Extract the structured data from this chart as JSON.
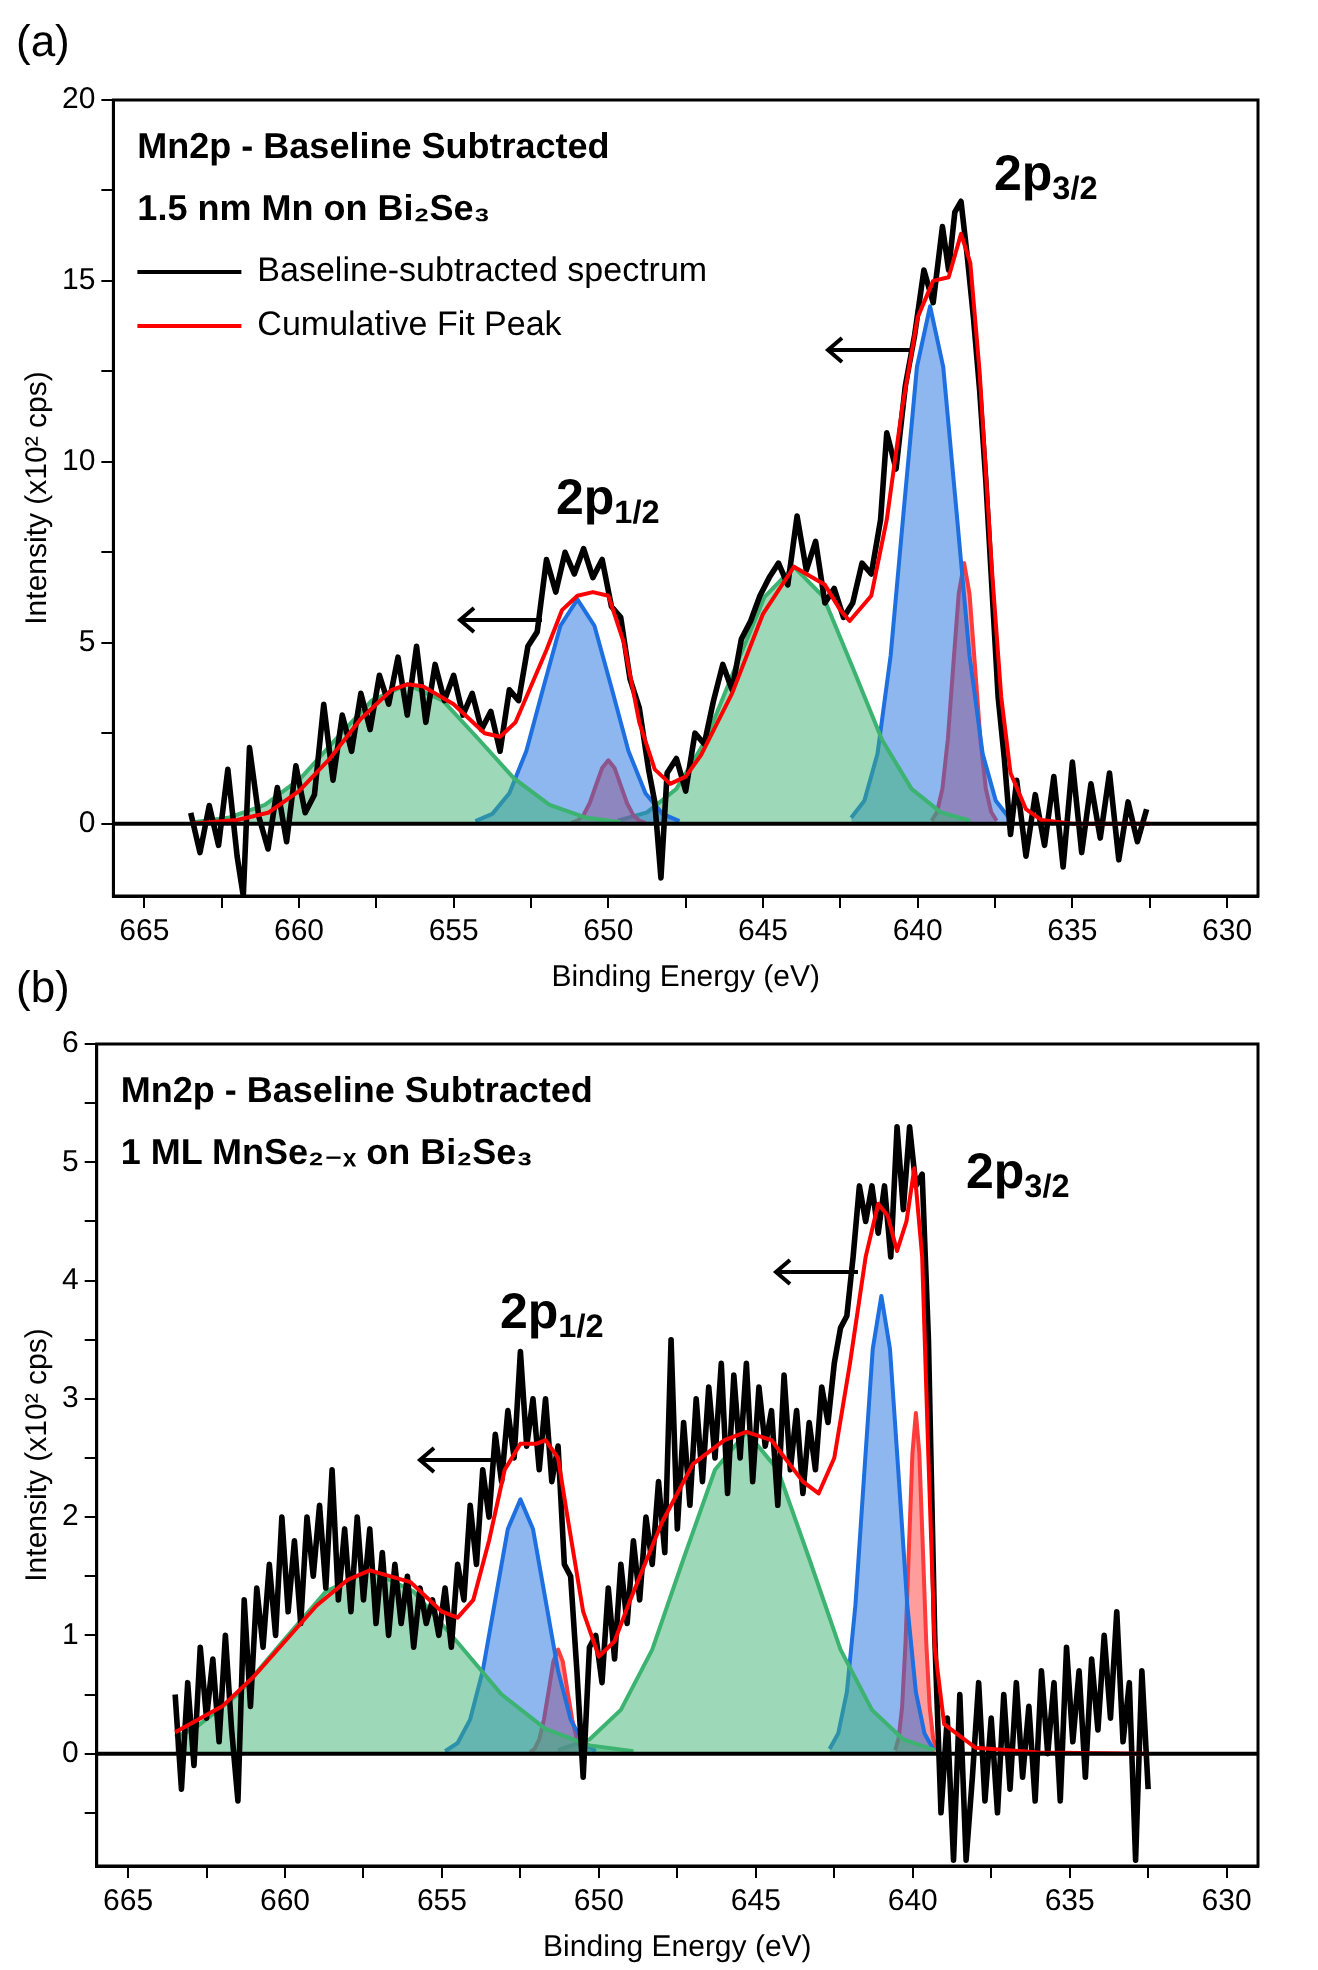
{
  "chart_data": [
    {
      "type": "line",
      "title": "Mn2p - Baseline Subtracted",
      "subtitle": "1.5 nm Mn on Bi₂Se₃",
      "xlabel": "Binding Energy (eV)",
      "ylabel": "Intensity (x10² cps)",
      "xlim": [
        666,
        629
      ],
      "xticks": [
        665,
        {
          "value": 662.5,
          "label": null
        },
        660,
        {
          "value": 657.5,
          "label": null
        },
        655,
        {
          "value": 652.5,
          "label": null
        },
        650,
        {
          "value": 647.5,
          "label": null
        },
        645,
        {
          "value": 642.5,
          "label": null
        },
        640,
        {
          "value": 637.5,
          "label": null
        },
        635,
        {
          "value": 632.5,
          "label": null
        },
        630
      ],
      "ylim": [
        -2,
        20
      ],
      "yticks": [
        0,
        {
          "value": 2.5,
          "label": null
        },
        5,
        {
          "value": 7.5,
          "label": null
        },
        10,
        {
          "value": 12.5,
          "label": null
        },
        15,
        {
          "value": 17.5,
          "label": null
        },
        20
      ],
      "legend": "top left",
      "grid": false,
      "ref_lines": [
        {
          "axis": "y",
          "value": 0,
          "color": "#000000"
        }
      ],
      "annotations": [
        "(a)",
        "2p$_{3/2}$",
        "2p$_{1/2}$"
      ],
      "series": [
        {
          "type": "line",
          "name": "Baseline-subtracted spectrum",
          "color": "#000000",
          "x": [
            663.5,
            663.2,
            662.9,
            662.6,
            662.3,
            662.0,
            661.8,
            661.6,
            661.3,
            661.0,
            660.7,
            660.4,
            660.1,
            659.8,
            659.5,
            659.2,
            658.9,
            658.6,
            658.3,
            658.0,
            657.7,
            657.4,
            657.1,
            656.8,
            656.5,
            656.2,
            655.9,
            655.6,
            655.3,
            655.0,
            654.7,
            654.4,
            654.1,
            653.8,
            653.5,
            653.2,
            652.9,
            652.6,
            652.3,
            652.0,
            651.7,
            651.4,
            651.1,
            650.8,
            650.5,
            650.2,
            649.9,
            649.6,
            649.3,
            649.0,
            648.7,
            648.5,
            648.3,
            648.1,
            647.8,
            647.5,
            647.2,
            646.9,
            646.6,
            646.3,
            646.0,
            645.7,
            645.4,
            645.1,
            644.8,
            644.5,
            644.2,
            643.9,
            643.6,
            643.3,
            643.0,
            642.7,
            642.4,
            642.1,
            641.8,
            641.5,
            641.2,
            641.0,
            640.7,
            640.4,
            640.1,
            639.8,
            639.5,
            639.2,
            639.0,
            638.8,
            638.6,
            638.4,
            638.2,
            638.0,
            637.8,
            637.6,
            637.4,
            637.2,
            637.0,
            636.8,
            636.5,
            636.2,
            635.9,
            635.6,
            635.3,
            635.0,
            634.7,
            634.4,
            634.1,
            633.8,
            633.5,
            633.2,
            632.9,
            632.6
          ],
          "values": [
            0.3,
            -0.8,
            0.5,
            -0.6,
            1.5,
            -0.9,
            -2.0,
            2.1,
            0.2,
            -0.7,
            1.0,
            -0.5,
            1.6,
            0.3,
            0.8,
            3.3,
            1.2,
            3.0,
            2.0,
            3.6,
            2.6,
            4.1,
            3.3,
            4.6,
            3.0,
            4.9,
            2.8,
            4.4,
            3.4,
            4.1,
            3.0,
            3.6,
            2.6,
            3.1,
            2.0,
            3.7,
            3.4,
            4.9,
            5.3,
            7.3,
            6.4,
            7.5,
            6.9,
            7.6,
            6.8,
            7.3,
            6.0,
            5.7,
            4.0,
            3.2,
            1.5,
            0.6,
            -1.5,
            1.4,
            1.8,
            0.9,
            2.5,
            2.2,
            3.4,
            4.4,
            3.7,
            5.1,
            5.6,
            6.3,
            6.8,
            7.2,
            6.6,
            8.5,
            7.0,
            7.8,
            6.1,
            6.5,
            5.7,
            6.1,
            7.2,
            6.9,
            8.4,
            10.8,
            9.8,
            12.1,
            13.5,
            15.3,
            14.4,
            16.5,
            15.3,
            16.9,
            17.2,
            15.7,
            14.0,
            12.0,
            9.5,
            6.5,
            3.5,
            1.8,
            -0.3,
            1.2,
            -0.9,
            0.8,
            -0.6,
            1.3,
            -1.2,
            1.7,
            -0.8,
            1.1,
            -0.4,
            1.4,
            -1.0,
            0.6,
            -0.5,
            0.4
          ]
        },
        {
          "type": "line",
          "name": "Cumulative Fit Peak",
          "color": "#ff0000",
          "x": [
            663.5,
            662,
            661,
            660,
            659,
            658,
            657,
            656.5,
            656,
            655,
            654,
            653.5,
            653,
            652,
            651.5,
            651,
            650.5,
            650,
            649.5,
            649,
            648.5,
            648,
            647.5,
            647,
            646,
            645,
            644,
            643,
            642.5,
            642.2,
            641.5,
            641,
            640.5,
            640,
            639.5,
            639,
            638.6,
            638.3,
            638,
            637.6,
            637.3,
            637,
            636.5,
            636,
            635,
            632.5
          ],
          "values": [
            0.0,
            0.1,
            0.3,
            0.9,
            1.8,
            2.9,
            3.7,
            3.85,
            3.8,
            3.3,
            2.5,
            2.4,
            2.8,
            4.8,
            5.9,
            6.3,
            6.4,
            6.3,
            5.0,
            2.8,
            1.5,
            1.1,
            1.3,
            1.9,
            3.6,
            5.8,
            7.1,
            6.6,
            5.9,
            5.6,
            6.3,
            8.4,
            11.5,
            14.0,
            15.0,
            15.1,
            16.3,
            15.5,
            12.5,
            7.0,
            3.5,
            1.4,
            0.4,
            0.1,
            0.0,
            0.0
          ]
        },
        {
          "type": "area",
          "color": "#3cb371",
          "x": [
            649.6,
            650.75,
            651.9,
            653.05,
            654.2,
            655.35,
            656.5,
            657.65,
            658.8,
            659.95,
            661.1,
            662.25,
            663.4
          ],
          "values": [
            0.04,
            0.17,
            0.52,
            1.25,
            2.34,
            3.4,
            3.85,
            3.4,
            2.34,
            1.25,
            0.52,
            0.17,
            0.04
          ]
        },
        {
          "type": "area",
          "color": "#1e6fe0",
          "x": [
            647.7,
            648.25,
            648.8,
            649.35,
            649.9,
            650.45,
            651,
            651.55,
            652.1,
            652.65,
            653.2,
            653.75,
            654.3
          ],
          "values": [
            0.07,
            0.27,
            0.84,
            2.01,
            3.76,
            5.47,
            6.2,
            5.47,
            3.76,
            2.01,
            0.84,
            0.27,
            0.07
          ]
        },
        {
          "type": "area",
          "color": "#ff3b3b",
          "x": [
            648.8,
            649.0,
            649.2,
            649.4,
            649.6,
            649.8,
            650,
            650.2,
            650.4,
            650.6,
            650.8,
            651.0,
            651.2
          ],
          "values": [
            0.02,
            0.08,
            0.24,
            0.57,
            1.06,
            1.54,
            1.75,
            1.54,
            1.06,
            0.57,
            0.24,
            0.08,
            0.02
          ]
        },
        {
          "type": "area",
          "color": "#3cb371",
          "x": [
            638.3,
            639.25,
            640.2,
            641.15,
            642.1,
            643.05,
            644,
            644.95,
            645.9,
            646.85,
            647.8,
            648.75,
            649.7
          ],
          "values": [
            0.08,
            0.31,
            0.96,
            2.31,
            4.31,
            6.27,
            7.1,
            6.27,
            4.31,
            2.31,
            0.96,
            0.31,
            0.08
          ]
        },
        {
          "type": "area",
          "color": "#1e6fe0",
          "x": [
            637.05,
            637.475,
            637.9,
            638.325,
            638.75,
            639.175,
            639.6,
            640.025,
            640.45,
            640.875,
            641.3,
            641.725,
            642.15
          ],
          "values": [
            0.16,
            0.63,
            1.93,
            4.64,
            8.67,
            12.62,
            14.3,
            12.62,
            8.67,
            4.64,
            1.93,
            0.63,
            0.16
          ]
        },
        {
          "type": "area",
          "color": "#ff3b3b",
          "x": [
            637.45,
            637.625,
            637.8,
            637.975,
            638.15,
            638.325,
            638.5,
            638.675,
            638.85,
            639.025,
            639.2,
            639.375,
            639.55
          ],
          "values": [
            0.08,
            0.32,
            0.97,
            2.34,
            4.37,
            6.35,
            7.2,
            6.35,
            4.37,
            2.34,
            0.97,
            0.32,
            0.08
          ]
        }
      ]
    },
    {
      "type": "line",
      "title": "Mn2p - Baseline Subtracted",
      "subtitle": "1 ML MnSe₂₋ₓ on Bi₂Se₃",
      "xlabel": "Binding Energy (eV)",
      "ylabel": "Intensity (x10² cps)",
      "xlim": [
        666,
        629
      ],
      "xticks": [
        665,
        {
          "value": 662.5,
          "label": null
        },
        660,
        {
          "value": 657.5,
          "label": null
        },
        655,
        {
          "value": 652.5,
          "label": null
        },
        650,
        {
          "value": 647.5,
          "label": null
        },
        645,
        {
          "value": 642.5,
          "label": null
        },
        640,
        {
          "value": 637.5,
          "label": null
        },
        635,
        {
          "value": 632.5,
          "label": null
        },
        630
      ],
      "ylim": [
        -0.95,
        6
      ],
      "yticks": [
        {
          "value": -0.5,
          "label": null
        },
        0,
        {
          "value": 0.5,
          "label": null
        },
        1,
        {
          "value": 1.5,
          "label": null
        },
        2,
        {
          "value": 2.5,
          "label": null
        },
        3,
        {
          "value": 3.5,
          "label": null
        },
        4,
        {
          "value": 4.5,
          "label": null
        },
        5,
        {
          "value": 5.5,
          "label": null
        },
        6
      ],
      "grid": false,
      "ref_lines": [
        {
          "axis": "y",
          "value": 0,
          "color": "#000000"
        }
      ],
      "annotations": [
        "(b)",
        "2p$_{3/2}$",
        "2p$_{1/2}$"
      ],
      "series": [
        {
          "type": "line",
          "color": "#000000",
          "x": [
            663.5,
            663.3,
            663.1,
            662.9,
            662.7,
            662.5,
            662.3,
            662.1,
            661.9,
            661.7,
            661.5,
            661.3,
            661.1,
            660.9,
            660.7,
            660.5,
            660.3,
            660.1,
            659.9,
            659.7,
            659.5,
            659.3,
            659.1,
            658.9,
            658.7,
            658.5,
            658.3,
            658.1,
            657.9,
            657.7,
            657.5,
            657.3,
            657.1,
            656.9,
            656.7,
            656.5,
            656.3,
            656.1,
            655.9,
            655.7,
            655.5,
            655.3,
            655.1,
            654.9,
            654.7,
            654.5,
            654.3,
            654.1,
            653.9,
            653.7,
            653.5,
            653.3,
            653.1,
            652.9,
            652.7,
            652.5,
            652.3,
            652.1,
            651.9,
            651.7,
            651.5,
            651.3,
            651.1,
            650.9,
            650.7,
            650.5,
            650.3,
            650.1,
            649.9,
            649.7,
            649.5,
            649.3,
            649.1,
            648.9,
            648.7,
            648.5,
            648.3,
            648.1,
            647.9,
            647.7,
            647.5,
            647.3,
            647.1,
            646.9,
            646.7,
            646.5,
            646.3,
            646.1,
            645.9,
            645.7,
            645.5,
            645.3,
            645.1,
            644.9,
            644.7,
            644.5,
            644.3,
            644.1,
            643.9,
            643.7,
            643.5,
            643.3,
            643.1,
            642.9,
            642.7,
            642.5,
            642.3,
            642.1,
            641.9,
            641.7,
            641.5,
            641.3,
            641.1,
            640.9,
            640.7,
            640.5,
            640.3,
            640.1,
            639.9,
            639.7,
            639.5,
            639.3,
            639.1,
            638.9,
            638.7,
            638.5,
            638.3,
            638.1,
            637.9,
            637.7,
            637.5,
            637.3,
            637.1,
            636.9,
            636.7,
            636.5,
            636.3,
            636.1,
            635.9,
            635.7,
            635.5,
            635.3,
            635.1,
            634.9,
            634.7,
            634.5,
            634.3,
            634.1,
            633.9,
            633.7,
            633.5,
            633.3,
            633.1,
            632.9,
            632.7,
            632.5
          ],
          "values": [
            0.5,
            -0.3,
            0.6,
            -0.1,
            0.9,
            0.3,
            0.8,
            0.1,
            1.0,
            0.2,
            -0.4,
            1.3,
            0.4,
            1.4,
            0.9,
            1.6,
            1.0,
            2.0,
            1.2,
            1.8,
            1.1,
            2.0,
            1.5,
            2.1,
            1.4,
            2.4,
            1.3,
            1.9,
            1.2,
            2.0,
            1.3,
            1.9,
            1.1,
            1.7,
            1.0,
            1.6,
            1.1,
            1.5,
            0.9,
            1.4,
            1.1,
            1.3,
            1.0,
            1.4,
            0.9,
            1.6,
            1.3,
            2.1,
            1.6,
            2.4,
            2.0,
            2.7,
            2.3,
            2.9,
            2.5,
            3.4,
            2.6,
            3.0,
            2.4,
            3.0,
            2.3,
            2.6,
            1.6,
            1.5,
            0.7,
            -0.2,
            0.9,
            1.0,
            0.6,
            1.4,
            0.8,
            1.6,
            1.1,
            1.8,
            1.3,
            2.0,
            1.6,
            2.3,
            1.7,
            3.5,
            1.9,
            2.8,
            2.1,
            3.0,
            2.3,
            3.1,
            2.5,
            3.3,
            2.2,
            3.2,
            2.5,
            3.3,
            2.3,
            3.1,
            2.6,
            2.9,
            2.1,
            3.2,
            2.4,
            2.9,
            2.2,
            2.8,
            2.4,
            3.1,
            2.8,
            3.3,
            3.6,
            3.7,
            4.2,
            4.8,
            4.5,
            4.8,
            4.4,
            4.8,
            4.2,
            5.3,
            4.6,
            5.3,
            4.8,
            4.9,
            3.5,
            1.0,
            -0.5,
            0.3,
            -0.9,
            0.5,
            -0.9,
            -0.2,
            0.6,
            -0.4,
            0.3,
            -0.5,
            0.5,
            -0.3,
            0.6,
            -0.2,
            0.4,
            -0.4,
            0.7,
            0.0,
            0.6,
            -0.4,
            0.9,
            0.1,
            0.7,
            -0.2,
            0.8,
            0.2,
            1.0,
            0.3,
            1.2,
            0.1,
            0.6,
            -0.9,
            0.7,
            -0.3
          ]
        },
        {
          "type": "line",
          "color": "#ff0000",
          "x": [
            663.5,
            662,
            661,
            660,
            659,
            658,
            657.3,
            656,
            655,
            654.5,
            654,
            653.5,
            653,
            652.5,
            652,
            651.7,
            651.3,
            651,
            650.5,
            650,
            649.5,
            649,
            648,
            647,
            646,
            645.3,
            644.5,
            643.5,
            643,
            642.5,
            642,
            641.5,
            641.1,
            640.8,
            640.5,
            640.2,
            639.95,
            639.7,
            639.5,
            639.3,
            639,
            638,
            636,
            632.5
          ],
          "values": [
            0.18,
            0.4,
            0.65,
            0.95,
            1.25,
            1.47,
            1.55,
            1.45,
            1.2,
            1.15,
            1.3,
            1.8,
            2.4,
            2.62,
            2.62,
            2.65,
            2.5,
            2.0,
            1.2,
            0.82,
            0.95,
            1.3,
            1.95,
            2.45,
            2.65,
            2.72,
            2.65,
            2.3,
            2.2,
            2.5,
            3.3,
            4.2,
            4.65,
            4.55,
            4.25,
            4.5,
            4.95,
            4.2,
            2.5,
            0.9,
            0.25,
            0.05,
            0.01,
            0.0
          ]
        },
        {
          "type": "area",
          "color": "#3cb371",
          "x": [
            648.9,
            650.3,
            651.7,
            653.1,
            654.5,
            655.9,
            657.3,
            658.7,
            660.1,
            661.5,
            662.9,
            663.5
          ],
          "values": [
            0.02,
            0.07,
            0.21,
            0.5,
            0.94,
            1.37,
            1.55,
            1.37,
            0.94,
            0.5,
            0.21,
            0.14
          ]
        },
        {
          "type": "area",
          "color": "#1e6fe0",
          "x": [
            650.1,
            650.5,
            650.9,
            651.3,
            651.7,
            652.1,
            652.5,
            652.9,
            653.3,
            653.7,
            654.1,
            654.5,
            654.9
          ],
          "values": [
            0.02,
            0.09,
            0.29,
            0.7,
            1.3,
            1.9,
            2.15,
            1.9,
            1.3,
            0.7,
            0.29,
            0.09,
            0.02
          ]
        },
        {
          "type": "area",
          "color": "#ff3b3b",
          "x": [
            650.4,
            650.55,
            650.7,
            650.85,
            651.0,
            651.15,
            651.3,
            651.45,
            651.6,
            651.75,
            651.9,
            652.05,
            652.2
          ],
          "values": [
            0.01,
            0.04,
            0.12,
            0.29,
            0.53,
            0.78,
            0.88,
            0.78,
            0.53,
            0.29,
            0.12,
            0.04,
            0.01
          ]
        },
        {
          "type": "area",
          "color": "#3cb371",
          "x": [
            639.3,
            640.3,
            641.3,
            642.3,
            643.3,
            644.3,
            645.3,
            646.3,
            647.3,
            648.3,
            649.3,
            650.3,
            651.3
          ],
          "values": [
            0.03,
            0.12,
            0.37,
            0.88,
            1.65,
            2.4,
            2.72,
            2.4,
            1.65,
            0.88,
            0.37,
            0.12,
            0.03
          ]
        },
        {
          "type": "area",
          "color": "#1e6fe0",
          "x": [
            639.35,
            639.625,
            639.9,
            640.175,
            640.45,
            640.725,
            641,
            641.275,
            641.55,
            641.825,
            642.1,
            642.375,
            642.65
          ],
          "values": [
            0.04,
            0.17,
            0.52,
            1.26,
            2.35,
            3.42,
            3.87,
            3.42,
            2.35,
            1.26,
            0.52,
            0.17,
            0.04
          ]
        },
        {
          "type": "area",
          "color": "#ff3b3b",
          "x": [
            639.24,
            639.35,
            639.46,
            639.57,
            639.68,
            639.79,
            639.9,
            640.01,
            640.12,
            640.23,
            640.34,
            640.45,
            640.56
          ],
          "values": [
            0.03,
            0.13,
            0.39,
            0.94,
            1.75,
            2.54,
            2.88,
            2.54,
            1.75,
            0.94,
            0.39,
            0.13,
            0.03
          ]
        }
      ]
    }
  ]
}
